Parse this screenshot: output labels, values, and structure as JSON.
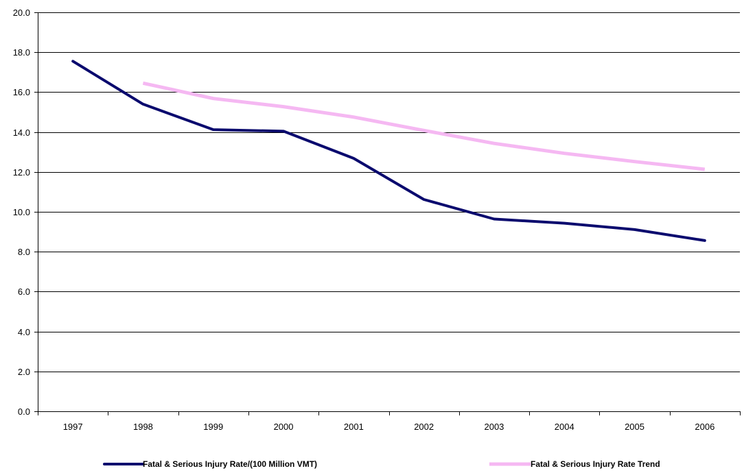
{
  "chart_data": {
    "type": "line",
    "title": "",
    "xlabel": "",
    "ylabel": "",
    "x": [
      "1997",
      "1998",
      "1999",
      "2000",
      "2001",
      "2002",
      "2003",
      "2004",
      "2005",
      "2006"
    ],
    "ylim": [
      0,
      20
    ],
    "yticks": [
      "0.0",
      "2.0",
      "4.0",
      "6.0",
      "8.0",
      "10.0",
      "12.0",
      "14.0",
      "16.0",
      "18.0",
      "20.0"
    ],
    "grid": "horizontal",
    "legend": "bottom",
    "series": [
      {
        "name": "Fatal & Serious Injury Rate/(100 Million VMT)",
        "color": "#0a0a6e",
        "values": [
          17.55,
          15.4,
          14.12,
          14.04,
          12.68,
          10.62,
          9.64,
          9.43,
          9.11,
          8.56
        ]
      },
      {
        "name": "Fatal & Serious Injury Rate Trend",
        "color": "#f5b8f2",
        "values": [
          null,
          16.45,
          15.68,
          15.27,
          14.75,
          14.08,
          13.43,
          12.93,
          12.52,
          12.13
        ]
      }
    ]
  }
}
